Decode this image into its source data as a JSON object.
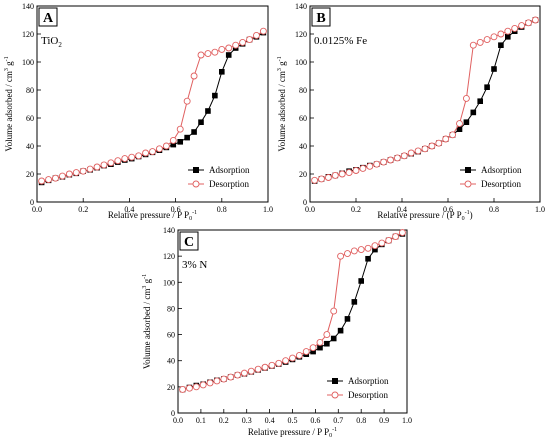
{
  "chart_data": [
    {
      "type": "line",
      "panel_label": "A",
      "sample_label": "TiO",
      "sample_subscript": "2",
      "xlabel_main": "Relative pressure / P P",
      "xlabel_sub": "0",
      "xlabel_sup": "-1",
      "ylabel_main": "Volume adsorbed / cm",
      "ylabel_mid": "3",
      "ylabel_g": " g",
      "ylabel_sup": "-1",
      "xlim": [
        0,
        1.0
      ],
      "ylim": [
        0,
        140
      ],
      "x_ticks": [
        "0.0",
        "0.2",
        "0.4",
        "0.6",
        "0.8",
        "1.0"
      ],
      "y_ticks": [
        "0",
        "20",
        "40",
        "60",
        "80",
        "100",
        "120",
        "140"
      ],
      "legend": [
        "Adsorption",
        "Desorption"
      ],
      "series": [
        {
          "name": "Adsorption",
          "marker": "square",
          "x": [
            0.02,
            0.05,
            0.08,
            0.11,
            0.14,
            0.17,
            0.2,
            0.23,
            0.26,
            0.29,
            0.32,
            0.35,
            0.38,
            0.41,
            0.44,
            0.47,
            0.5,
            0.53,
            0.56,
            0.59,
            0.62,
            0.65,
            0.68,
            0.71,
            0.74,
            0.77,
            0.8,
            0.83,
            0.86,
            0.89,
            0.92,
            0.95,
            0.98
          ],
          "y": [
            14,
            15.5,
            17,
            18,
            19.5,
            20.5,
            22,
            23,
            24.5,
            26,
            27,
            28.5,
            30,
            31,
            32.5,
            34,
            35.5,
            37,
            39,
            41,
            43,
            46,
            50,
            57,
            65,
            76,
            93,
            105,
            110,
            113,
            116,
            118,
            121
          ]
        },
        {
          "name": "Desorption",
          "marker": "circle",
          "x": [
            0.98,
            0.95,
            0.92,
            0.89,
            0.86,
            0.83,
            0.8,
            0.77,
            0.74,
            0.71,
            0.68,
            0.65,
            0.62,
            0.59,
            0.56,
            0.53,
            0.5,
            0.47,
            0.44,
            0.41,
            0.38,
            0.35,
            0.32,
            0.29,
            0.26,
            0.23,
            0.2,
            0.17,
            0.14,
            0.11,
            0.08,
            0.05,
            0.02
          ],
          "y": [
            122,
            119,
            116,
            114,
            112,
            110,
            109,
            107,
            106,
            105,
            90,
            72,
            52,
            44,
            40,
            38,
            36,
            35,
            33,
            32,
            31,
            29.5,
            28,
            26.5,
            25,
            23.5,
            22,
            21,
            20,
            18.5,
            17,
            16,
            15
          ]
        }
      ]
    },
    {
      "type": "line",
      "panel_label": "B",
      "sample_label": "0.0125% Fe",
      "xlabel_main": "Relative pressure / (P P",
      "xlabel_sub": "0",
      "xlabel_sup": "-1",
      "xlabel_end": ")",
      "ylabel_main": "Volume adsorbed / cm",
      "ylabel_mid": "3",
      "ylabel_g": " g",
      "ylabel_sup": "-1",
      "xlim": [
        0,
        1.0
      ],
      "ylim": [
        0,
        140
      ],
      "x_ticks": [
        "0.0",
        "0.2",
        "0.4",
        "0.6",
        "0.8",
        "1.0"
      ],
      "y_ticks": [
        "0",
        "20",
        "40",
        "60",
        "80",
        "100",
        "120",
        "140"
      ],
      "legend": [
        "Adsorption",
        "Desorption"
      ],
      "series": [
        {
          "name": "Adsorption",
          "marker": "square",
          "x": [
            0.02,
            0.05,
            0.08,
            0.11,
            0.14,
            0.17,
            0.2,
            0.23,
            0.26,
            0.29,
            0.32,
            0.35,
            0.38,
            0.41,
            0.44,
            0.47,
            0.5,
            0.53,
            0.56,
            0.59,
            0.62,
            0.65,
            0.68,
            0.71,
            0.74,
            0.77,
            0.8,
            0.83,
            0.86,
            0.89,
            0.92,
            0.95,
            0.98
          ],
          "y": [
            15,
            16.5,
            18,
            19,
            20.5,
            22,
            23,
            24.5,
            26,
            27,
            28.5,
            30,
            31.5,
            33,
            34.5,
            36,
            38,
            40,
            42,
            45,
            48,
            52,
            57,
            64,
            72,
            82,
            95,
            112,
            118,
            122,
            125,
            128,
            130
          ]
        },
        {
          "name": "Desorption",
          "marker": "circle",
          "x": [
            0.98,
            0.95,
            0.92,
            0.89,
            0.86,
            0.83,
            0.8,
            0.77,
            0.74,
            0.71,
            0.68,
            0.65,
            0.62,
            0.59,
            0.56,
            0.53,
            0.5,
            0.47,
            0.44,
            0.41,
            0.38,
            0.35,
            0.32,
            0.29,
            0.26,
            0.23,
            0.2,
            0.17,
            0.14,
            0.11,
            0.08,
            0.05,
            0.02
          ],
          "y": [
            130,
            128,
            126,
            124,
            122,
            120,
            118,
            116,
            114,
            112,
            74,
            56,
            48,
            45,
            42,
            40,
            38,
            36.5,
            35,
            33,
            31.5,
            30,
            28.5,
            27,
            25.5,
            24,
            22.5,
            21,
            20,
            19,
            17.5,
            16.5,
            15.5
          ]
        }
      ]
    },
    {
      "type": "line",
      "panel_label": "C",
      "sample_label": "3% N",
      "xlabel_main": "Relative pressure / P P",
      "xlabel_sub": "0",
      "xlabel_sup": "-1",
      "ylabel_main": "Volume adsorbed / cm",
      "ylabel_mid": "3",
      "ylabel_g": " g",
      "ylabel_sup": "-1",
      "xlim": [
        0,
        1.0
      ],
      "ylim": [
        0,
        140
      ],
      "x_ticks": [
        "0.0",
        "0.1",
        "0.2",
        "0.3",
        "0.4",
        "0.5",
        "0.6",
        "0.7",
        "0.8",
        "0.9",
        "1.0"
      ],
      "y_ticks": [
        "0",
        "20",
        "40",
        "60",
        "80",
        "100",
        "120",
        "140"
      ],
      "legend": [
        "Adsorption",
        "Desorption"
      ],
      "series": [
        {
          "name": "Adsorption",
          "marker": "square",
          "x": [
            0.02,
            0.05,
            0.08,
            0.11,
            0.14,
            0.17,
            0.2,
            0.23,
            0.26,
            0.29,
            0.32,
            0.35,
            0.38,
            0.41,
            0.44,
            0.47,
            0.5,
            0.53,
            0.56,
            0.59,
            0.62,
            0.65,
            0.68,
            0.71,
            0.74,
            0.77,
            0.8,
            0.83,
            0.86,
            0.89,
            0.92,
            0.95,
            0.98
          ],
          "y": [
            18,
            19.5,
            21,
            22,
            23.5,
            25,
            26,
            27.5,
            29,
            30,
            31.5,
            33,
            34.5,
            36,
            37.5,
            39,
            41,
            43,
            45,
            47,
            50,
            53,
            57,
            63,
            72,
            85,
            101,
            118,
            125,
            129,
            132,
            135,
            137
          ]
        },
        {
          "name": "Desorption",
          "marker": "circle",
          "x": [
            0.98,
            0.95,
            0.92,
            0.89,
            0.86,
            0.83,
            0.8,
            0.77,
            0.74,
            0.71,
            0.68,
            0.65,
            0.62,
            0.59,
            0.56,
            0.53,
            0.5,
            0.47,
            0.44,
            0.41,
            0.38,
            0.35,
            0.32,
            0.29,
            0.26,
            0.23,
            0.2,
            0.17,
            0.14,
            0.11,
            0.08,
            0.05,
            0.02
          ],
          "y": [
            138,
            135,
            132,
            130,
            128,
            126,
            125,
            124,
            122,
            120,
            78,
            60,
            54,
            50,
            47,
            44,
            42,
            40,
            38,
            36.5,
            35,
            33.5,
            32,
            30.5,
            29,
            27.5,
            26,
            24.5,
            23,
            21.5,
            20,
            19,
            18
          ]
        }
      ]
    }
  ]
}
